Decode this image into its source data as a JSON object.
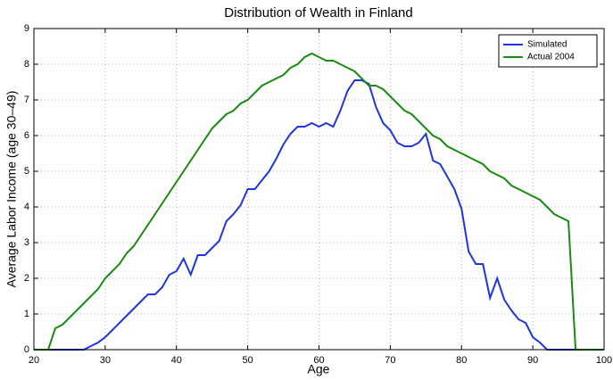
{
  "chart_data": {
    "type": "line",
    "title": "Distribution of Wealth in Finland",
    "xlabel": "Age",
    "ylabel": "Average Labor Income (age 30–49)",
    "x": [
      20,
      21,
      22,
      23,
      24,
      25,
      26,
      27,
      28,
      29,
      30,
      31,
      32,
      33,
      34,
      35,
      36,
      37,
      38,
      39,
      40,
      41,
      42,
      43,
      44,
      45,
      46,
      47,
      48,
      49,
      50,
      51,
      52,
      53,
      54,
      55,
      56,
      57,
      58,
      59,
      60,
      61,
      62,
      63,
      64,
      65,
      66,
      67,
      68,
      69,
      70,
      71,
      72,
      73,
      74,
      75,
      76,
      77,
      78,
      79,
      80,
      81,
      82,
      83,
      84,
      85,
      86,
      87,
      88,
      89,
      90,
      91,
      92,
      93,
      94,
      95,
      96,
      97,
      98,
      99,
      100
    ],
    "series": [
      {
        "name": "Simulated",
        "color": "#1f35e0",
        "values": [
          0,
          0,
          0,
          0,
          0,
          0,
          0,
          0,
          0.1,
          0.2,
          0.35,
          0.55,
          0.75,
          0.95,
          1.15,
          1.35,
          1.55,
          1.55,
          1.75,
          2.1,
          2.2,
          2.55,
          2.1,
          2.65,
          2.65,
          2.85,
          3.05,
          3.6,
          3.8,
          4.05,
          4.5,
          4.5,
          4.75,
          5.0,
          5.35,
          5.75,
          6.05,
          6.25,
          6.25,
          6.35,
          6.25,
          6.35,
          6.25,
          6.7,
          7.25,
          7.55,
          7.55,
          7.45,
          6.8,
          6.35,
          6.15,
          5.8,
          5.7,
          5.7,
          5.8,
          6.05,
          5.3,
          5.2,
          4.85,
          4.5,
          3.95,
          2.75,
          2.4,
          2.4,
          1.45,
          2.0,
          1.4,
          1.1,
          0.85,
          0.75,
          0.35,
          0.2,
          0,
          0,
          0,
          0,
          0,
          0,
          0,
          0,
          0
        ]
      },
      {
        "name": "Actual 2004",
        "color": "#1a8a12",
        "values": [
          0,
          0,
          0,
          0.6,
          0.7,
          0.9,
          1.1,
          1.3,
          1.5,
          1.7,
          2.0,
          2.2,
          2.4,
          2.7,
          2.9,
          3.2,
          3.5,
          3.8,
          4.1,
          4.4,
          4.7,
          5.0,
          5.3,
          5.6,
          5.9,
          6.2,
          6.4,
          6.6,
          6.7,
          6.9,
          7.0,
          7.2,
          7.4,
          7.5,
          7.6,
          7.7,
          7.9,
          8.0,
          8.2,
          8.3,
          8.2,
          8.1,
          8.1,
          8.0,
          7.9,
          7.8,
          7.6,
          7.4,
          7.4,
          7.3,
          7.1,
          6.9,
          6.7,
          6.6,
          6.4,
          6.2,
          6.0,
          5.9,
          5.7,
          5.6,
          5.5,
          5.4,
          5.3,
          5.2,
          5.0,
          4.9,
          4.8,
          4.6,
          4.5,
          4.4,
          4.3,
          4.2,
          4.0,
          3.8,
          3.7,
          3.6,
          0,
          0,
          0,
          0,
          0
        ]
      }
    ],
    "xlim": [
      20,
      100
    ],
    "ylim": [
      0,
      9
    ],
    "xticks": [
      20,
      30,
      40,
      50,
      60,
      70,
      80,
      90,
      100
    ],
    "yticks": [
      0,
      1,
      2,
      3,
      4,
      5,
      6,
      7,
      8,
      9
    ],
    "grid": true,
    "legend": "upper right"
  }
}
